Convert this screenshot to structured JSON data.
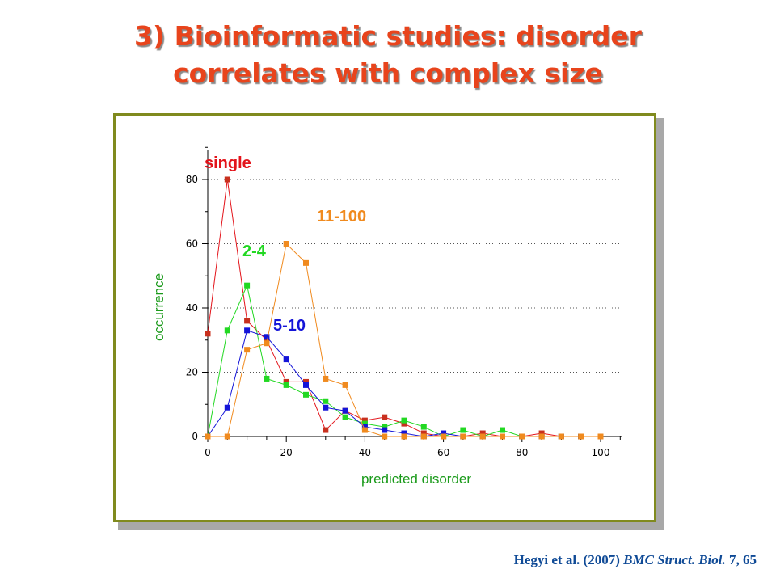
{
  "title": {
    "line1": "3) Bioinformatic studies: disorder",
    "line2": "correlates with complex size"
  },
  "citation": {
    "authors": "Hegyi et al. (2007) ",
    "journal": "BMC Struct. Biol.",
    "volume": " 7, 65"
  },
  "colors": {
    "title": "#e8441c",
    "frame": "#808a1e",
    "axis_labels": "#1a9a1a",
    "citation": "#0f4a96"
  },
  "chart_data": {
    "type": "line",
    "xlabel": "predicted disorder",
    "ylabel": "occurrence",
    "xlim": [
      0,
      100
    ],
    "ylim": [
      0,
      90
    ],
    "xticks": [
      0,
      20,
      40,
      60,
      80,
      100
    ],
    "yticks": [
      0,
      20,
      40,
      60,
      80
    ],
    "grid": "dotted-horizontal",
    "x": [
      0,
      5,
      10,
      15,
      20,
      25,
      30,
      35,
      40,
      45,
      50,
      55,
      60,
      65,
      70,
      75,
      80,
      85,
      90,
      95,
      100
    ],
    "series": [
      {
        "name": "single",
        "color": "#e3141b",
        "marker": "#c8301e",
        "values": [
          32,
          80,
          36,
          30,
          17,
          17,
          2,
          8,
          5,
          6,
          4,
          1,
          0,
          0,
          1,
          0,
          0,
          1,
          0,
          0,
          0
        ]
      },
      {
        "name": "2-4",
        "color": "#22d822",
        "marker": "#22d822",
        "values": [
          0,
          33,
          47,
          18,
          16,
          13,
          11,
          6,
          4,
          3,
          5,
          3,
          0,
          2,
          0,
          2,
          0,
          0,
          0,
          0,
          0
        ]
      },
      {
        "name": "5-10",
        "color": "#1414d8",
        "marker": "#1414d8",
        "values": [
          0,
          9,
          33,
          31,
          24,
          16,
          9,
          8,
          3,
          2,
          1,
          0,
          1,
          0,
          0,
          0,
          0,
          0,
          0,
          0,
          0
        ]
      },
      {
        "name": "11-100",
        "color": "#f08a1e",
        "marker": "#f08a1e",
        "values": [
          0,
          0,
          27,
          29,
          60,
          54,
          18,
          16,
          2,
          0,
          0,
          0,
          0,
          0,
          0,
          0,
          0,
          0,
          0,
          0,
          0
        ]
      }
    ]
  }
}
